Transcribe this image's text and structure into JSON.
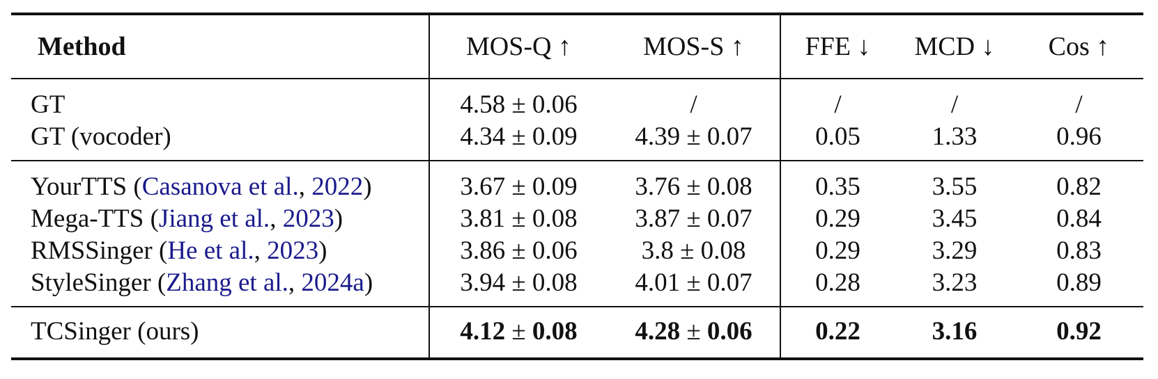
{
  "table": {
    "headers": {
      "method": "Method",
      "mos_q": "MOS-Q ↑",
      "mos_s": "MOS-S ↑",
      "ffe": "FFE ↓",
      "mcd": "MCD ↓",
      "cos": "Cos ↑"
    },
    "gt_rows": [
      {
        "name": "GT",
        "mos_q": "4.58 ± 0.06",
        "mos_s": "/",
        "ffe": "/",
        "mcd": "/",
        "cos": "/"
      },
      {
        "name": "GT (vocoder)",
        "mos_q": "4.34 ± 0.09",
        "mos_s": "4.39 ± 0.07",
        "ffe": "0.05",
        "mcd": "1.33",
        "cos": "0.96"
      }
    ],
    "baseline_rows": [
      {
        "name": "YourTTS (",
        "cite_authors": "Casanova et al.",
        "sep": ", ",
        "cite_year": "2022",
        "close": ")",
        "mos_q": "3.67 ± 0.09",
        "mos_s": "3.76 ± 0.08",
        "ffe": "0.35",
        "mcd": "3.55",
        "cos": "0.82"
      },
      {
        "name": "Mega-TTS (",
        "cite_authors": "Jiang et al.",
        "sep": ", ",
        "cite_year": "2023",
        "close": ")",
        "mos_q": "3.81 ± 0.08",
        "mos_s": "3.87 ± 0.07",
        "ffe": "0.29",
        "mcd": "3.45",
        "cos": "0.84"
      },
      {
        "name": "RMSSinger (",
        "cite_authors": "He et al.",
        "sep": ", ",
        "cite_year": "2023",
        "close": ")",
        "mos_q": "3.86 ± 0.06",
        "mos_s": "3.8 ± 0.08",
        "ffe": "0.29",
        "mcd": "3.29",
        "cos": "0.83"
      },
      {
        "name": "StyleSinger (",
        "cite_authors": "Zhang et al.",
        "sep": ", ",
        "cite_year": "2024a",
        "close": ")",
        "mos_q": "3.94 ± 0.08",
        "mos_s": "4.01 ± 0.07",
        "ffe": "0.28",
        "mcd": "3.23",
        "cos": "0.89"
      }
    ],
    "ours_row": {
      "name": "TCSinger (ours)",
      "mos_q_mean": "4.12",
      "mos_q_pm": " ± ",
      "mos_q_std": "0.08",
      "mos_s_mean": "4.28",
      "mos_s_pm": " ± ",
      "mos_s_std": "0.06",
      "ffe": "0.22",
      "mcd": "3.16",
      "cos": "0.92"
    },
    "colors": {
      "citation": "#1a1a8c",
      "text": "#111111",
      "rules": "#111111"
    }
  }
}
